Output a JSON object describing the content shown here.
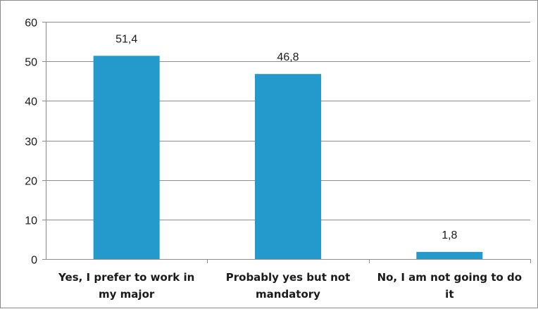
{
  "chart_data": {
    "type": "bar",
    "categories": [
      [
        "Yes, I prefer to work in",
        "my major"
      ],
      [
        "Probably yes but not",
        "mandatory"
      ],
      [
        "No, I am not going to do",
        "it"
      ]
    ],
    "values": [
      51.4,
      46.8,
      1.8
    ],
    "data_labels": [
      "51,4",
      "46,8",
      "1,8"
    ],
    "title": "",
    "xlabel": "",
    "ylabel": "",
    "ylim": [
      0,
      60
    ],
    "yticks": [
      0,
      10,
      20,
      30,
      40,
      50,
      60
    ],
    "grid": true,
    "legend": "none",
    "colors": {
      "bar": "#2399CC",
      "grid": "#8c8c8c",
      "axis": "#8c8c8c",
      "text": "#1a1a1a"
    }
  }
}
